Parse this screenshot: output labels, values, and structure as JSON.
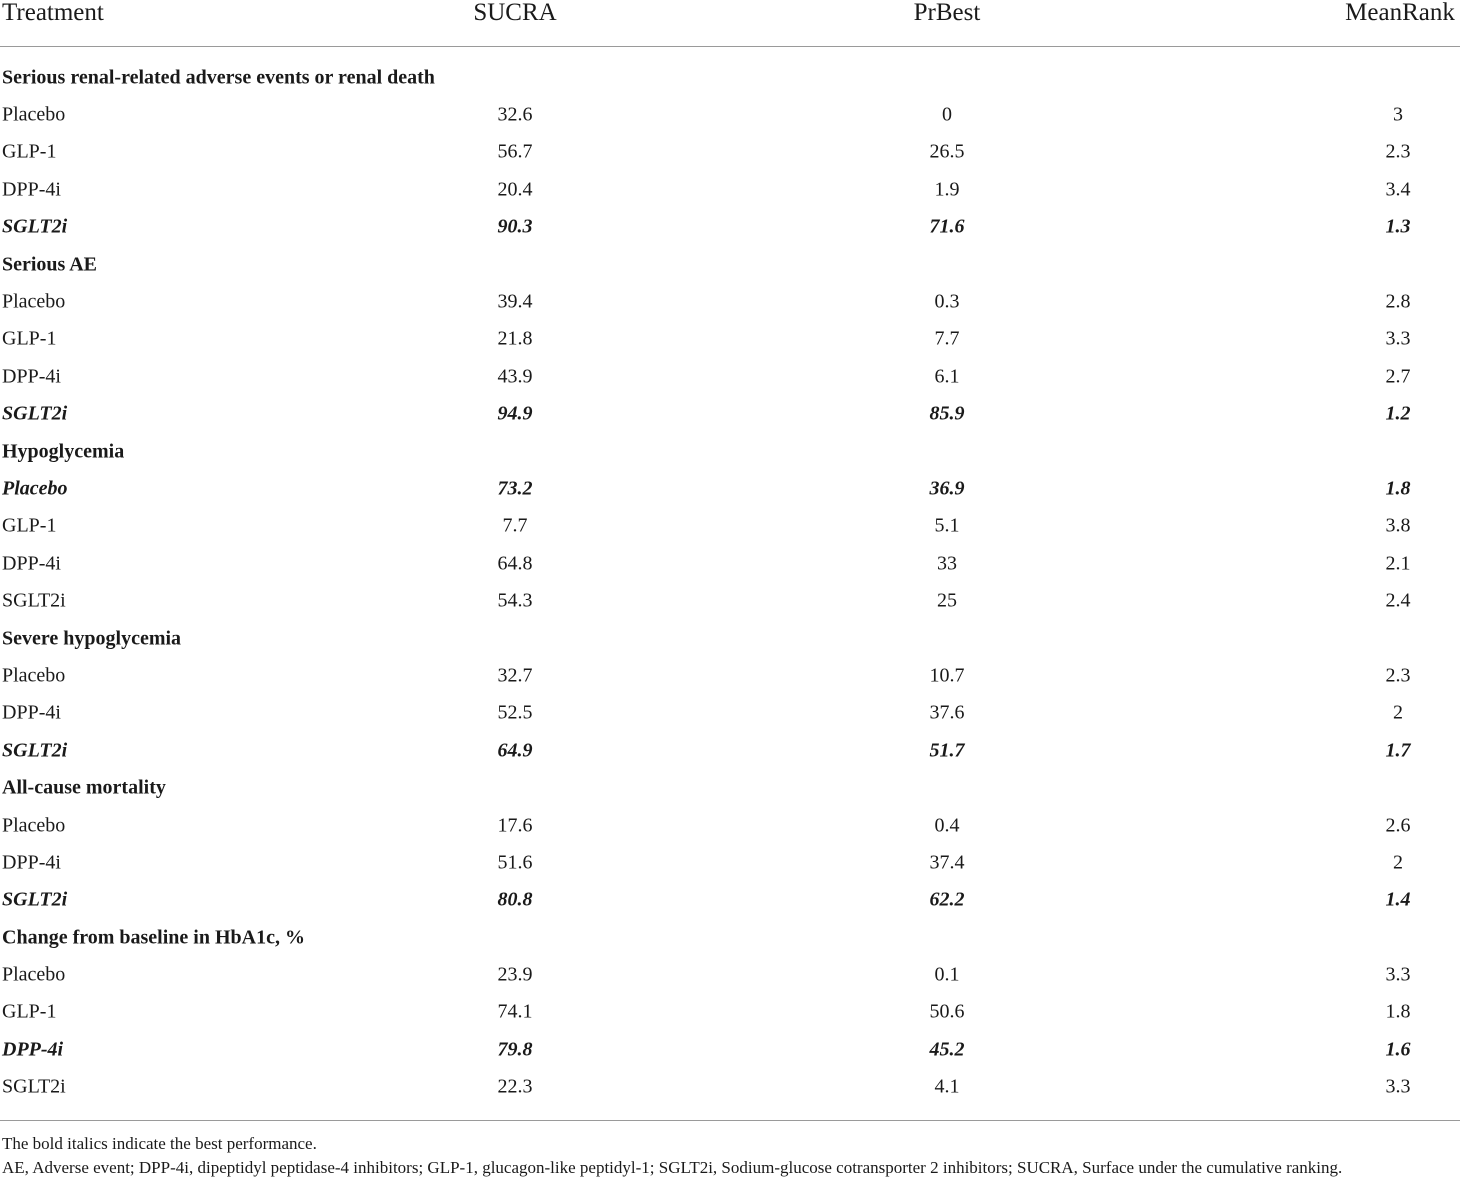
{
  "table": {
    "headers": {
      "treatment": "Treatment",
      "sucra": "SUCRA",
      "prbest": "PrBest",
      "meanrank": "MeanRank"
    },
    "sections": [
      {
        "title": "Serious renal-related adverse events or renal death",
        "rows": [
          {
            "treatment": "Placebo",
            "sucra": "32.6",
            "prbest": "0",
            "meanrank": "3",
            "best": false
          },
          {
            "treatment": "GLP-1",
            "sucra": "56.7",
            "prbest": "26.5",
            "meanrank": "2.3",
            "best": false
          },
          {
            "treatment": "DPP-4i",
            "sucra": "20.4",
            "prbest": "1.9",
            "meanrank": "3.4",
            "best": false
          },
          {
            "treatment": "SGLT2i",
            "sucra": "90.3",
            "prbest": "71.6",
            "meanrank": "1.3",
            "best": true
          }
        ]
      },
      {
        "title": "Serious AE",
        "rows": [
          {
            "treatment": "Placebo",
            "sucra": "39.4",
            "prbest": "0.3",
            "meanrank": "2.8",
            "best": false
          },
          {
            "treatment": "GLP-1",
            "sucra": "21.8",
            "prbest": "7.7",
            "meanrank": "3.3",
            "best": false
          },
          {
            "treatment": "DPP-4i",
            "sucra": "43.9",
            "prbest": "6.1",
            "meanrank": "2.7",
            "best": false
          },
          {
            "treatment": "SGLT2i",
            "sucra": "94.9",
            "prbest": "85.9",
            "meanrank": "1.2",
            "best": true
          }
        ]
      },
      {
        "title": "Hypoglycemia",
        "rows": [
          {
            "treatment": "Placebo",
            "sucra": "73.2",
            "prbest": "36.9",
            "meanrank": "1.8",
            "best": true
          },
          {
            "treatment": "GLP-1",
            "sucra": "7.7",
            "prbest": "5.1",
            "meanrank": "3.8",
            "best": false
          },
          {
            "treatment": "DPP-4i",
            "sucra": "64.8",
            "prbest": "33",
            "meanrank": "2.1",
            "best": false
          },
          {
            "treatment": "SGLT2i",
            "sucra": "54.3",
            "prbest": "25",
            "meanrank": "2.4",
            "best": false
          }
        ]
      },
      {
        "title": "Severe hypoglycemia",
        "rows": [
          {
            "treatment": "Placebo",
            "sucra": "32.7",
            "prbest": "10.7",
            "meanrank": "2.3",
            "best": false
          },
          {
            "treatment": "DPP-4i",
            "sucra": "52.5",
            "prbest": "37.6",
            "meanrank": "2",
            "best": false
          },
          {
            "treatment": "SGLT2i",
            "sucra": "64.9",
            "prbest": "51.7",
            "meanrank": "1.7",
            "best": true
          }
        ]
      },
      {
        "title": "All-cause mortality",
        "rows": [
          {
            "treatment": "Placebo",
            "sucra": "17.6",
            "prbest": "0.4",
            "meanrank": "2.6",
            "best": false
          },
          {
            "treatment": "DPP-4i",
            "sucra": "51.6",
            "prbest": "37.4",
            "meanrank": "2",
            "best": false
          },
          {
            "treatment": "SGLT2i",
            "sucra": "80.8",
            "prbest": "62.2",
            "meanrank": "1.4",
            "best": true
          }
        ]
      },
      {
        "title": "Change from baseline in HbA1c, %",
        "rows": [
          {
            "treatment": "Placebo",
            "sucra": "23.9",
            "prbest": "0.1",
            "meanrank": "3.3",
            "best": false
          },
          {
            "treatment": "GLP-1",
            "sucra": "74.1",
            "prbest": "50.6",
            "meanrank": "1.8",
            "best": false
          },
          {
            "treatment": "DPP-4i",
            "sucra": "79.8",
            "prbest": "45.2",
            "meanrank": "1.6",
            "best": true
          },
          {
            "treatment": "SGLT2i",
            "sucra": "22.3",
            "prbest": "4.1",
            "meanrank": "3.3",
            "best": false
          }
        ]
      }
    ]
  },
  "footnotes": {
    "line1": "The bold italics indicate the best performance.",
    "line2": "AE, Adverse event; DPP-4i, dipeptidyl peptidase-4 inhibitors; GLP-1, glucagon-like peptidyl-1; SGLT2i, Sodium-glucose cotransporter 2 inhibitors; SUCRA, Surface under the cumulative ranking."
  }
}
